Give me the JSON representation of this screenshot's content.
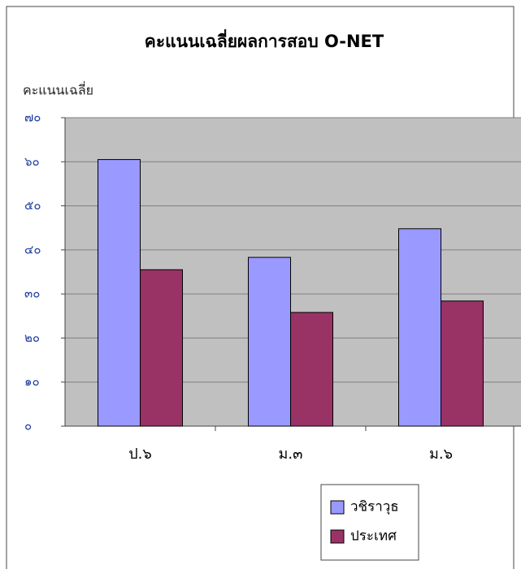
{
  "chart_data": {
    "type": "bar",
    "title": "คะแนนเฉลี่ยผลการสอบ O-NET",
    "y_label": "คะแนนเฉลี่ย",
    "categories": [
      "ป.๖",
      "ม.๓",
      "ม.๖"
    ],
    "series": [
      {
        "name": "วชิราวุธ",
        "color": "#9999ff",
        "values": [
          60.5,
          38.3,
          44.8
        ]
      },
      {
        "name": "ประเทศ",
        "color": "#993366",
        "values": [
          35.5,
          25.8,
          28.4
        ]
      }
    ],
    "ylim": [
      0,
      70
    ],
    "yticks": [
      {
        "value": 0,
        "label": "๐"
      },
      {
        "value": 10,
        "label": "๑๐"
      },
      {
        "value": 20,
        "label": "๒๐"
      },
      {
        "value": 30,
        "label": "๓๐"
      },
      {
        "value": 40,
        "label": "๔๐"
      },
      {
        "value": 50,
        "label": "๕๐"
      },
      {
        "value": 60,
        "label": "๖๐"
      },
      {
        "value": 70,
        "label": "๗๐"
      }
    ],
    "grid": true
  }
}
